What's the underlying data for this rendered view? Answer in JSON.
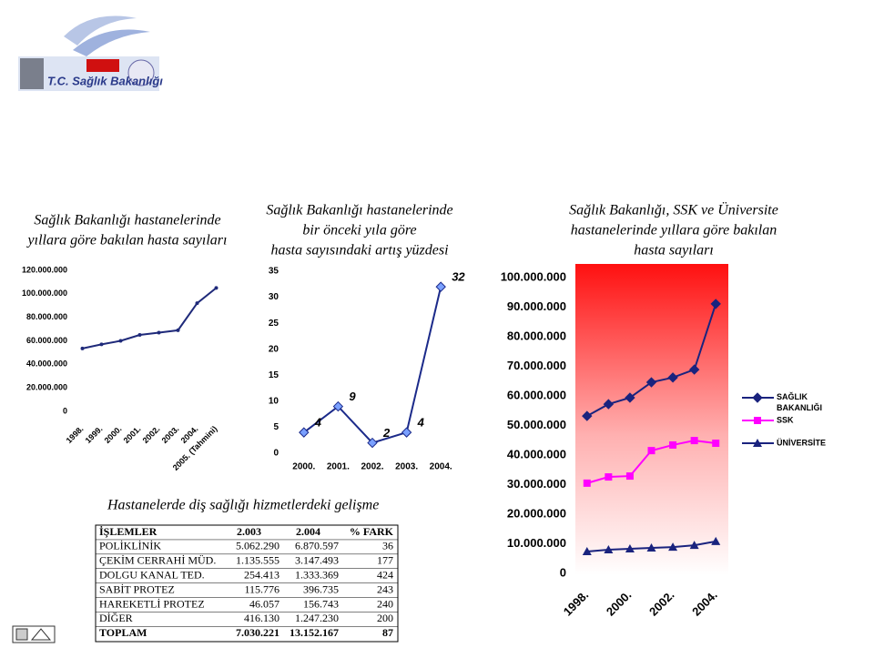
{
  "header": {
    "logo_text": "T.C. Sağlık Bakanlığı"
  },
  "chart_data": [
    {
      "type": "line",
      "title": [
        "Sağlık Bakanlığı hastanelerinde",
        "yıllara göre bakılan hasta sayıları"
      ],
      "categories": [
        "1998.",
        "1999.",
        "2000.",
        "2001.",
        "2002.",
        "2003.",
        "2004.",
        "2005. (Tahmini)"
      ],
      "values": [
        53500000,
        57000000,
        60000000,
        65000000,
        67000000,
        69000000,
        92000000,
        105000000
      ],
      "color": "#1f2a7a",
      "marker": "dot",
      "ylim": [
        0,
        120000000
      ],
      "yticks": [
        0,
        {
          "value": 20000000,
          "label": "20.000.000"
        },
        {
          "value": 40000000,
          "label": "40.000.000"
        },
        {
          "value": 60000000,
          "label": "60.000.000"
        },
        {
          "value": 80000000,
          "label": "80.000.000"
        },
        {
          "value": 100000000,
          "label": "100.000.000"
        },
        {
          "value": 120000000,
          "label": "120.000.000"
        }
      ]
    },
    {
      "type": "line",
      "title": [
        "Sağlık Bakanlığı hastanelerinde",
        "bir önceki yıla göre",
        "hasta sayısındaki artış yüzdesi"
      ],
      "categories": [
        "2000.",
        "2001.",
        "2002.",
        "2003.",
        "2004."
      ],
      "values": [
        4,
        9,
        2,
        4,
        32
      ],
      "color": "#1b2a8a",
      "marker": "diamond",
      "value_labels_shown": true,
      "ylim": [
        0,
        35
      ],
      "yticks": [
        0,
        5,
        10,
        15,
        20,
        25,
        30,
        35
      ]
    },
    {
      "type": "line",
      "title": [
        "Sağlık Bakanlığı, SSK ve Üniversite",
        "hastanelerinde yıllara göre bakılan",
        "hasta sayıları"
      ],
      "categories": [
        "1998.",
        null,
        "2000.",
        null,
        "2002.",
        null,
        "2004."
      ],
      "series": [
        {
          "name": "SAĞLIK BAKANLIĞI",
          "color": "#1a237e",
          "marker": "diamond",
          "values": [
            53200000,
            57200000,
            59400000,
            64600000,
            66200000,
            68900000,
            91100000
          ]
        },
        {
          "name": "SSK",
          "color": "#ff00ff",
          "marker": "square",
          "values": [
            30500000,
            32600000,
            32900000,
            41500000,
            43400000,
            44900000,
            44000000
          ]
        },
        {
          "name": "ÜNİVERSİTE",
          "color": "#1a237e",
          "marker": "triangle",
          "values": [
            7400000,
            8000000,
            8300000,
            8600000,
            8900000,
            9500000,
            10800000
          ]
        }
      ],
      "ylim": [
        0,
        100000000
      ],
      "yticks": [
        0,
        {
          "value": 10000000,
          "label": "10.000.000"
        },
        {
          "value": 20000000,
          "label": "20.000.000"
        },
        {
          "value": 30000000,
          "label": "30.000.000"
        },
        {
          "value": 40000000,
          "label": "40.000.000"
        },
        {
          "value": 50000000,
          "label": "50.000.000"
        },
        {
          "value": 60000000,
          "label": "60.000.000"
        },
        {
          "value": 70000000,
          "label": "70.000.000"
        },
        {
          "value": 80000000,
          "label": "80.000.000"
        },
        {
          "value": 90000000,
          "label": "90.000.000"
        },
        {
          "value": 100000000,
          "label": "100.000.000"
        }
      ],
      "legend": "right"
    }
  ],
  "table": {
    "title": "Hastanelerde diş sağlığı hizmetlerdeki gelişme",
    "header": [
      "İŞLEMLER",
      "2.003",
      "2.004",
      "% FARK"
    ],
    "rows": [
      [
        "POLİKLİNİK",
        "5.062.290",
        "6.870.597",
        "36"
      ],
      [
        "ÇEKİM CERRAHİ MÜD.",
        "1.135.555",
        "3.147.493",
        "177"
      ],
      [
        "DOLGU KANAL TED.",
        "254.413",
        "1.333.369",
        "424"
      ],
      [
        "SABİT PROTEZ",
        "115.776",
        "396.735",
        "243"
      ],
      [
        "HAREKETLİ PROTEZ",
        "46.057",
        "156.743",
        "240"
      ],
      [
        "DİĞER",
        "416.130",
        "1.247.230",
        "200"
      ],
      [
        "TOPLAM",
        "7.030.221",
        "13.152.167",
        "87"
      ]
    ]
  }
}
